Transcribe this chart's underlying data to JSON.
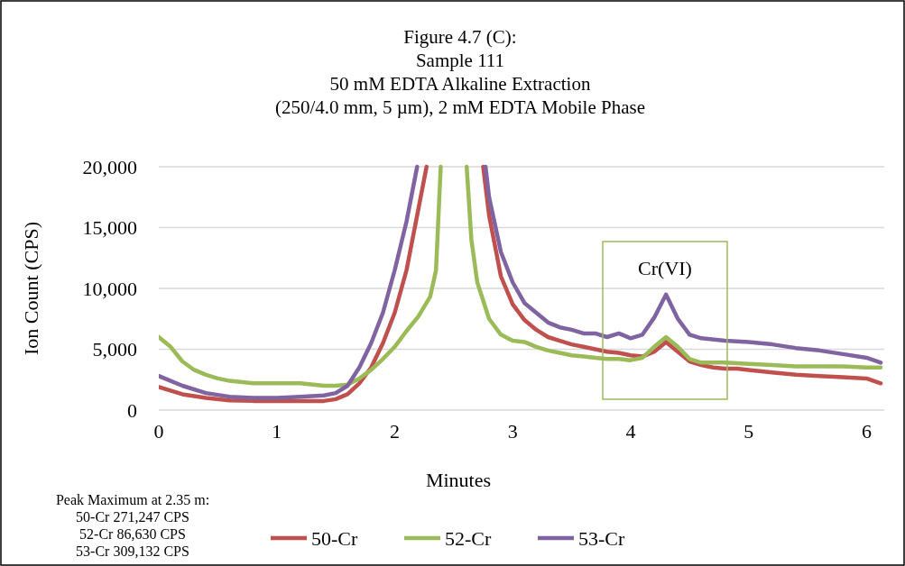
{
  "chart_data": {
    "type": "line",
    "title": "Figure 4.7 (C):\nSample 111\n50 mM EDTA Alkaline Extraction\n(250/4.0 mm, 5 µm), 2 mM EDTA Mobile Phase",
    "xlabel": "Minutes",
    "ylabel": "Ion Count (CPS)",
    "series": [
      {
        "name": "50-Cr",
        "color": "#c0504d",
        "x": [
          0,
          0.2,
          0.4,
          0.6,
          0.8,
          1.0,
          1.2,
          1.4,
          1.5,
          1.6,
          1.7,
          1.8,
          1.9,
          2.0,
          2.1,
          2.2,
          2.27,
          2.5,
          2.75,
          2.8,
          2.9,
          3.0,
          3.1,
          3.2,
          3.3,
          3.4,
          3.5,
          3.6,
          3.7,
          3.8,
          3.9,
          4.0,
          4.1,
          4.2,
          4.3,
          4.4,
          4.5,
          4.6,
          4.7,
          4.8,
          4.9,
          5.0,
          5.2,
          5.4,
          5.6,
          5.8,
          6.0,
          6.12
        ],
        "values": [
          1900,
          1300,
          1000,
          800,
          750,
          750,
          750,
          750,
          900,
          1300,
          2200,
          3500,
          5500,
          8000,
          11500,
          16500,
          20000,
          null,
          20000,
          16000,
          11000,
          8700,
          7400,
          6600,
          6000,
          5700,
          5400,
          5200,
          5000,
          4800,
          4700,
          4500,
          4400,
          4800,
          5600,
          4800,
          4000,
          3700,
          3500,
          3400,
          3400,
          3300,
          3100,
          2900,
          2800,
          2700,
          2600,
          2200
        ]
      },
      {
        "name": "52-Cr",
        "color": "#9bbb59",
        "x": [
          0,
          0.1,
          0.2,
          0.3,
          0.4,
          0.5,
          0.6,
          0.8,
          1.0,
          1.2,
          1.4,
          1.5,
          1.6,
          1.7,
          1.8,
          1.9,
          2.0,
          2.1,
          2.2,
          2.3,
          2.35,
          2.39,
          2.5,
          2.61,
          2.65,
          2.7,
          2.8,
          2.9,
          3.0,
          3.1,
          3.2,
          3.3,
          3.4,
          3.5,
          3.6,
          3.7,
          3.8,
          3.9,
          4.0,
          4.1,
          4.2,
          4.3,
          4.4,
          4.5,
          4.6,
          4.8,
          5.0,
          5.2,
          5.4,
          5.6,
          5.8,
          6.0,
          6.12
        ],
        "values": [
          6000,
          5200,
          4000,
          3300,
          2900,
          2600,
          2400,
          2200,
          2200,
          2200,
          2000,
          2000,
          2100,
          2600,
          3300,
          4200,
          5200,
          6500,
          7700,
          9300,
          11500,
          20000,
          null,
          20000,
          14000,
          10500,
          7500,
          6200,
          5700,
          5600,
          5200,
          4900,
          4700,
          4500,
          4400,
          4300,
          4200,
          4200,
          4100,
          4300,
          5200,
          6000,
          5200,
          4200,
          3900,
          3900,
          3800,
          3700,
          3600,
          3600,
          3600,
          3500,
          3500
        ]
      },
      {
        "name": "53-Cr",
        "color": "#8064a2",
        "x": [
          0,
          0.2,
          0.4,
          0.6,
          0.8,
          1.0,
          1.2,
          1.4,
          1.5,
          1.6,
          1.7,
          1.8,
          1.9,
          2.0,
          2.1,
          2.19,
          2.5,
          2.77,
          2.8,
          2.9,
          3.0,
          3.1,
          3.2,
          3.3,
          3.4,
          3.5,
          3.6,
          3.7,
          3.8,
          3.9,
          4.0,
          4.1,
          4.2,
          4.3,
          4.4,
          4.5,
          4.6,
          4.8,
          5.0,
          5.2,
          5.4,
          5.6,
          5.8,
          6.0,
          6.12
        ],
        "values": [
          2800,
          2000,
          1400,
          1100,
          1000,
          1000,
          1100,
          1200,
          1400,
          2000,
          3500,
          5500,
          8000,
          11500,
          15500,
          20000,
          null,
          20000,
          17500,
          13000,
          10500,
          8800,
          8000,
          7200,
          6800,
          6600,
          6300,
          6300,
          6000,
          6300,
          5900,
          6200,
          7600,
          9500,
          7500,
          6200,
          5900,
          5700,
          5600,
          5400,
          5100,
          4900,
          4600,
          4300,
          3900
        ]
      }
    ],
    "xlim": [
      0,
      6.15
    ],
    "xticks": [
      0,
      1,
      2,
      3,
      4,
      5,
      6
    ],
    "ylim": [
      0,
      20000
    ],
    "yticks": [
      {
        "value": 0,
        "label": "0"
      },
      {
        "value": 5000,
        "label": "5,000"
      },
      {
        "value": 10000,
        "label": "10,000"
      },
      {
        "value": 15000,
        "label": "15,000"
      },
      {
        "value": 20000,
        "label": "20,000"
      }
    ],
    "grid": "y",
    "legend": "bottom",
    "marker": "none",
    "line_style": "solid",
    "annotations": [
      "Cr(VI)",
      "Peak Maximum at 2.35 m:",
      "50-Cr 271,247 CPS",
      "52-Cr 86,630 CPS",
      "53-Cr 309,132 CPS"
    ]
  }
}
